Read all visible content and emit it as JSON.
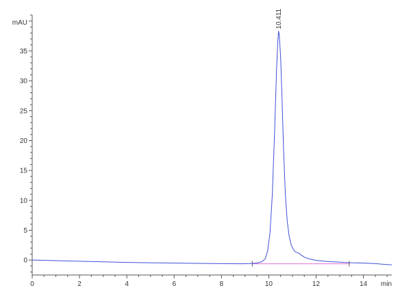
{
  "chart_data": {
    "type": "line",
    "title": "",
    "xlabel": "min",
    "ylabel": "mAU",
    "xlim": [
      0,
      15.2
    ],
    "ylim": [
      -2.5,
      41
    ],
    "x_ticks": [
      0,
      2,
      4,
      6,
      8,
      10,
      12,
      14
    ],
    "y_ticks": [
      0,
      5,
      10,
      15,
      20,
      25,
      30,
      35
    ],
    "grid": false,
    "legend": "none",
    "series": [
      {
        "color": "#3f4fd6",
        "points": [
          [
            0,
            0.0
          ],
          [
            1,
            -0.1
          ],
          [
            2,
            -0.2
          ],
          [
            3,
            -0.3
          ],
          [
            4,
            -0.4
          ],
          [
            5,
            -0.45
          ],
          [
            6,
            -0.5
          ],
          [
            7,
            -0.55
          ],
          [
            8,
            -0.6
          ],
          [
            8.8,
            -0.62
          ],
          [
            9.2,
            -0.6
          ],
          [
            9.5,
            -0.5
          ],
          [
            9.7,
            -0.3
          ],
          [
            9.85,
            0.2
          ],
          [
            9.95,
            1.5
          ],
          [
            10.05,
            4.5
          ],
          [
            10.15,
            11
          ],
          [
            10.25,
            22
          ],
          [
            10.33,
            32
          ],
          [
            10.38,
            36.5
          ],
          [
            10.411,
            38.3
          ],
          [
            10.44,
            37.8
          ],
          [
            10.5,
            34
          ],
          [
            10.56,
            27
          ],
          [
            10.62,
            19
          ],
          [
            10.7,
            11
          ],
          [
            10.78,
            6.5
          ],
          [
            10.86,
            4
          ],
          [
            10.95,
            2.5
          ],
          [
            11.05,
            1.7
          ],
          [
            11.15,
            1.3
          ],
          [
            11.25,
            1.2
          ],
          [
            11.35,
            0.9
          ],
          [
            11.5,
            0.5
          ],
          [
            11.7,
            0.2
          ],
          [
            12.0,
            -0.05
          ],
          [
            12.5,
            -0.25
          ],
          [
            13.0,
            -0.35
          ],
          [
            13.5,
            -0.45
          ],
          [
            14.0,
            -0.5
          ],
          [
            14.5,
            -0.6
          ],
          [
            15.0,
            -0.75
          ],
          [
            15.2,
            -0.8
          ]
        ]
      }
    ],
    "baseline": {
      "color": "#e36fd0",
      "points": [
        [
          9.3,
          -0.62
        ],
        [
          13.4,
          -0.62
        ]
      ]
    },
    "annotations": [
      {
        "text": "10.411",
        "x": 10.411,
        "y": 38.3
      }
    ]
  }
}
